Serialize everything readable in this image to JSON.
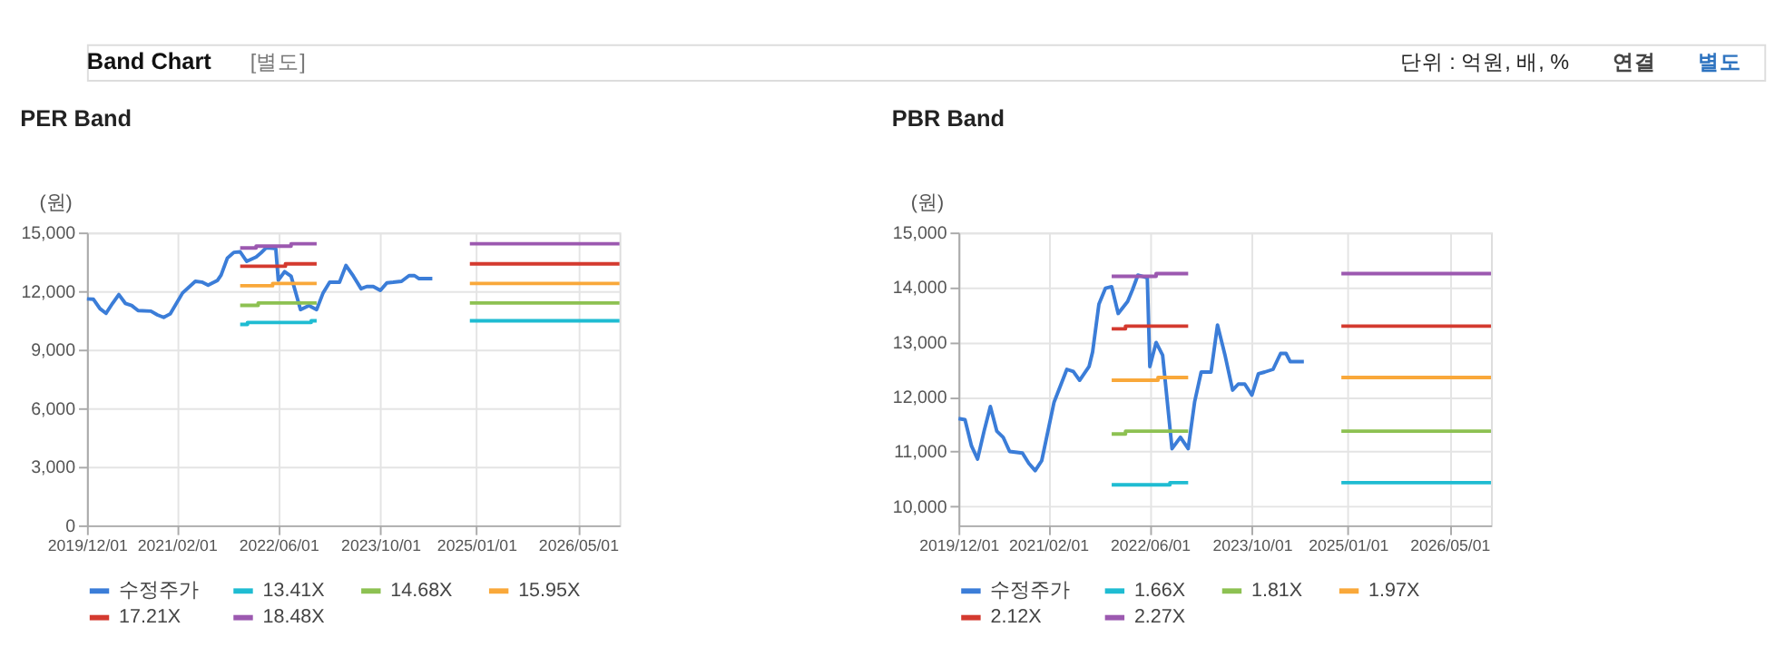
{
  "chart_data": [
    {
      "type": "line",
      "title": "PER Band",
      "ylabel": "(원)",
      "annotations": [
        "Band Chart",
        "[별도]",
        "단위 : 억원, 배, %",
        "연결",
        "별도"
      ],
      "xlim": [
        "2019-12-01",
        "2026-11-15"
      ],
      "xticks": [
        {
          "value": "2019-12-01",
          "label": "2019/12/01"
        },
        {
          "value": "2021-02-01",
          "label": "2021/02/01"
        },
        {
          "value": "2022-06-01",
          "label": "2022/06/01"
        },
        {
          "value": "2023-10-01",
          "label": "2023/10/01"
        },
        {
          "value": "2025-01-01",
          "label": "2025/01/01"
        },
        {
          "value": "2026-05-01",
          "label": "2026/05/01"
        }
      ],
      "ylim": [
        0,
        15000
      ],
      "yticks": [
        0,
        {
          "value": 3000,
          "label": "3,000"
        },
        {
          "value": 6000,
          "label": "6,000"
        },
        {
          "value": 9000,
          "label": "9,000"
        },
        {
          "value": 12000,
          "label": "12,000"
        },
        {
          "value": 15000,
          "label": "15,000"
        }
      ],
      "grid": true,
      "legend": "bottom",
      "marker": "none",
      "line_style": "solid",
      "series": [
        {
          "name": "수정주가",
          "color": "#3b7dd8",
          "x": [
            "2019-12-01",
            "2020-01-01",
            "2020-02-01",
            "2020-03-01",
            "2020-04-01",
            "2020-05-01",
            "2020-06-01",
            "2020-07-01",
            "2020-08-01",
            "2020-10-01",
            "2020-11-01",
            "2020-12-01",
            "2021-01-01",
            "2021-03-01",
            "2021-05-01",
            "2021-06-01",
            "2021-07-01",
            "2021-08-15",
            "2021-09-01",
            "2021-10-01",
            "2021-11-01",
            "2021-12-01",
            "2022-01-01",
            "2022-02-15",
            "2022-03-10",
            "2022-04-05",
            "2022-05-05",
            "2022-05-20",
            "2022-06-01",
            "2022-07-01",
            "2022-08-01",
            "2022-09-15",
            "2022-10-25",
            "2022-12-01",
            "2023-01-01",
            "2023-02-01",
            "2023-03-20",
            "2023-04-20",
            "2023-05-25",
            "2023-07-01",
            "2023-07-28",
            "2023-08-28",
            "2023-10-01",
            "2023-11-01",
            "2023-12-01",
            "2024-01-10",
            "2024-02-15",
            "2024-03-12",
            "2024-04-01",
            "2024-06-05"
          ],
          "values": [
            11600,
            11580,
            11100,
            10860,
            11370,
            11820,
            11370,
            11260,
            11000,
            10970,
            10780,
            10650,
            10830,
            11900,
            12500,
            12460,
            12300,
            12550,
            12820,
            13690,
            13980,
            14010,
            13520,
            13740,
            13950,
            14220,
            14190,
            14170,
            12550,
            12990,
            12760,
            11050,
            11260,
            11050,
            11910,
            12450,
            12450,
            13310,
            12770,
            12120,
            12230,
            12230,
            12030,
            12420,
            12450,
            12500,
            12790,
            12790,
            12640,
            12640
          ]
        },
        {
          "name": "13.41X",
          "color": "#1fbcd2",
          "x": [
            "2021-12-01",
            "2022-01-05",
            "2022-01-05",
            "2022-11-05",
            "2022-11-05",
            "2022-12-01",
            "2023-06-01",
            "2024-12-01",
            "2026-11-15"
          ],
          "values": [
            10290,
            10290,
            10390,
            10390,
            10480,
            10480,
            null,
            10480,
            10480
          ]
        },
        {
          "name": "14.68X",
          "color": "#8dc152",
          "x": [
            "2021-12-01",
            "2022-02-25",
            "2022-02-25",
            "2022-12-01",
            "2023-06-01",
            "2024-12-01",
            "2026-11-15"
          ],
          "values": [
            11270,
            11270,
            11390,
            11390,
            null,
            11390,
            11390
          ]
        },
        {
          "name": "15.95X",
          "color": "#f9a83a",
          "x": [
            "2021-12-01",
            "2022-05-05",
            "2022-05-05",
            "2022-12-01",
            "2023-06-01",
            "2024-12-01",
            "2026-11-15"
          ],
          "values": [
            12270,
            12270,
            12390,
            12390,
            null,
            12390,
            12390
          ]
        },
        {
          "name": "17.21X",
          "color": "#d43a2f",
          "x": [
            "2021-12-01",
            "2022-07-05",
            "2022-07-05",
            "2022-12-01",
            "2023-06-01",
            "2024-12-01",
            "2026-11-15"
          ],
          "values": [
            13270,
            13270,
            13390,
            13390,
            null,
            13390,
            13390
          ]
        },
        {
          "name": "18.48X",
          "color": "#9c59b0",
          "x": [
            "2021-12-01",
            "2022-02-15",
            "2022-02-15",
            "2022-08-01",
            "2022-08-01",
            "2022-12-01",
            "2023-06-01",
            "2024-12-01",
            "2026-11-15"
          ],
          "values": [
            14210,
            14210,
            14300,
            14300,
            14420,
            14420,
            null,
            14420,
            14420
          ]
        }
      ]
    },
    {
      "type": "line",
      "title": "PBR Band",
      "ylabel": "(원)",
      "xlim": [
        "2019-12-01",
        "2026-11-15"
      ],
      "xticks": [
        {
          "value": "2019-12-01",
          "label": "2019/12/01"
        },
        {
          "value": "2021-02-01",
          "label": "2021/02/01"
        },
        {
          "value": "2022-06-01",
          "label": "2022/06/01"
        },
        {
          "value": "2023-10-01",
          "label": "2023/10/01"
        },
        {
          "value": "2025-01-01",
          "label": "2025/01/01"
        },
        {
          "value": "2026-05-01",
          "label": "2026/05/01"
        }
      ],
      "ylim": [
        9650,
        15000
      ],
      "yticks": [
        {
          "value": 10000,
          "label": "10,000"
        },
        {
          "value": 11000,
          "label": "11,000"
        },
        {
          "value": 12000,
          "label": "12,000"
        },
        {
          "value": 13000,
          "label": "13,000"
        },
        {
          "value": 14000,
          "label": "14,000"
        },
        {
          "value": 15000,
          "label": "15,000"
        }
      ],
      "grid": true,
      "legend": "bottom",
      "marker": "none",
      "line_style": "solid",
      "series": [
        {
          "name": "수정주가",
          "color": "#3b7dd8",
          "x": [
            "2019-12-01",
            "2020-01-01",
            "2020-02-01",
            "2020-03-01",
            "2020-04-01",
            "2020-05-01",
            "2020-06-01",
            "2020-07-01",
            "2020-08-01",
            "2020-10-01",
            "2020-11-01",
            "2020-12-01",
            "2021-01-01",
            "2021-03-01",
            "2021-05-01",
            "2021-06-01",
            "2021-07-01",
            "2021-08-15",
            "2021-09-01",
            "2021-10-01",
            "2021-11-01",
            "2021-12-01",
            "2022-01-01",
            "2022-02-15",
            "2022-03-10",
            "2022-04-05",
            "2022-05-05",
            "2022-05-20",
            "2022-06-01",
            "2022-07-01",
            "2022-08-01",
            "2022-09-15",
            "2022-10-25",
            "2022-12-01",
            "2023-01-01",
            "2023-02-01",
            "2023-03-20",
            "2023-04-20",
            "2023-05-25",
            "2023-07-01",
            "2023-07-28",
            "2023-08-28",
            "2023-10-01",
            "2023-11-01",
            "2023-12-01",
            "2024-01-10",
            "2024-02-15",
            "2024-03-12",
            "2024-04-01",
            "2024-06-05"
          ],
          "values": [
            11600,
            11580,
            11100,
            10860,
            11370,
            11820,
            11370,
            11260,
            11000,
            10970,
            10780,
            10650,
            10830,
            11900,
            12500,
            12460,
            12300,
            12550,
            12820,
            13690,
            13980,
            14010,
            13520,
            13740,
            13950,
            14220,
            14190,
            14170,
            12550,
            12990,
            12760,
            11050,
            11260,
            11050,
            11910,
            12450,
            12450,
            13310,
            12770,
            12120,
            12230,
            12230,
            12030,
            12420,
            12450,
            12500,
            12790,
            12790,
            12640,
            12640
          ]
        },
        {
          "name": "1.66X",
          "color": "#1fbcd2",
          "x": [
            "2021-12-01",
            "2022-09-05",
            "2022-09-05",
            "2022-12-01",
            "2023-06-01",
            "2024-12-01",
            "2026-11-15"
          ],
          "values": [
            10390,
            10390,
            10430,
            10430,
            null,
            10430,
            10430
          ]
        },
        {
          "name": "1.81X",
          "color": "#8dc152",
          "x": [
            "2021-12-01",
            "2022-02-05",
            "2022-02-05",
            "2022-12-01",
            "2023-06-01",
            "2024-12-01",
            "2026-11-15"
          ],
          "values": [
            11320,
            11320,
            11370,
            11370,
            null,
            11370,
            11370
          ]
        },
        {
          "name": "1.97X",
          "color": "#f9a83a",
          "x": [
            "2021-12-01",
            "2022-07-10",
            "2022-07-10",
            "2022-12-01",
            "2023-06-01",
            "2024-12-01",
            "2026-11-15"
          ],
          "values": [
            12300,
            12300,
            12350,
            12350,
            null,
            12350,
            12350
          ]
        },
        {
          "name": "2.12X",
          "color": "#d43a2f",
          "x": [
            "2021-12-01",
            "2022-02-05",
            "2022-02-05",
            "2022-12-01",
            "2023-06-01",
            "2024-12-01",
            "2026-11-15"
          ],
          "values": [
            13240,
            13240,
            13290,
            13290,
            null,
            13290,
            13290
          ]
        },
        {
          "name": "2.27X",
          "color": "#9c59b0",
          "x": [
            "2021-12-01",
            "2022-07-01",
            "2022-07-01",
            "2022-12-01",
            "2023-06-01",
            "2024-12-01",
            "2026-11-15"
          ],
          "values": [
            14200,
            14200,
            14250,
            14250,
            null,
            14250,
            14250
          ]
        }
      ]
    }
  ]
}
